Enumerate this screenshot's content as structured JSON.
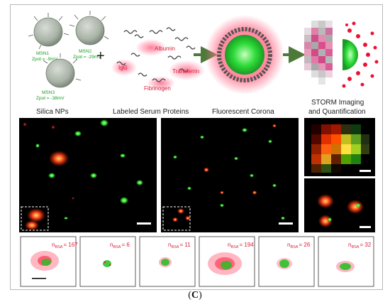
{
  "figure": {
    "caption_open": "(",
    "caption_letter": "C",
    "caption_close": ")",
    "schematic": {
      "particles": [
        {
          "name": "MSN1",
          "zpot": "Zpot = -9mV"
        },
        {
          "name": "MSN2",
          "zpot": "Zpot = -29mV"
        },
        {
          "name": "MSN3",
          "zpot": "Zpot = -38mV"
        }
      ],
      "plus": "+",
      "proteins": [
        "Albumin",
        "IgG",
        "Transferrin",
        "Fibrinogen"
      ],
      "labels": {
        "silica": "Silica NPs",
        "serum": "Labeled Serum Proteins",
        "corona": "Fluorescent Corona",
        "storm_line1": "STORM Imaging",
        "storm_line2": "and Quantification"
      }
    },
    "cluster_panels": [
      {
        "n_label": "n",
        "sub": "BSA",
        "value": "= 167"
      },
      {
        "n_label": "n",
        "sub": "BSA",
        "value": "= 6"
      },
      {
        "n_label": "n",
        "sub": "BSA",
        "value": "= 11"
      },
      {
        "n_label": "n",
        "sub": "BSA",
        "value": "= 194"
      },
      {
        "n_label": "n",
        "sub": "BSA",
        "value": "= 26"
      },
      {
        "n_label": "n",
        "sub": "BSA",
        "value": "= 32"
      }
    ],
    "colors": {
      "particle_green": "#2fcf3a",
      "protein_red": "#e8314a",
      "arrow_green": "#4d7a3a",
      "label_green": "#18a020",
      "label_red": "#d81f3a"
    }
  }
}
